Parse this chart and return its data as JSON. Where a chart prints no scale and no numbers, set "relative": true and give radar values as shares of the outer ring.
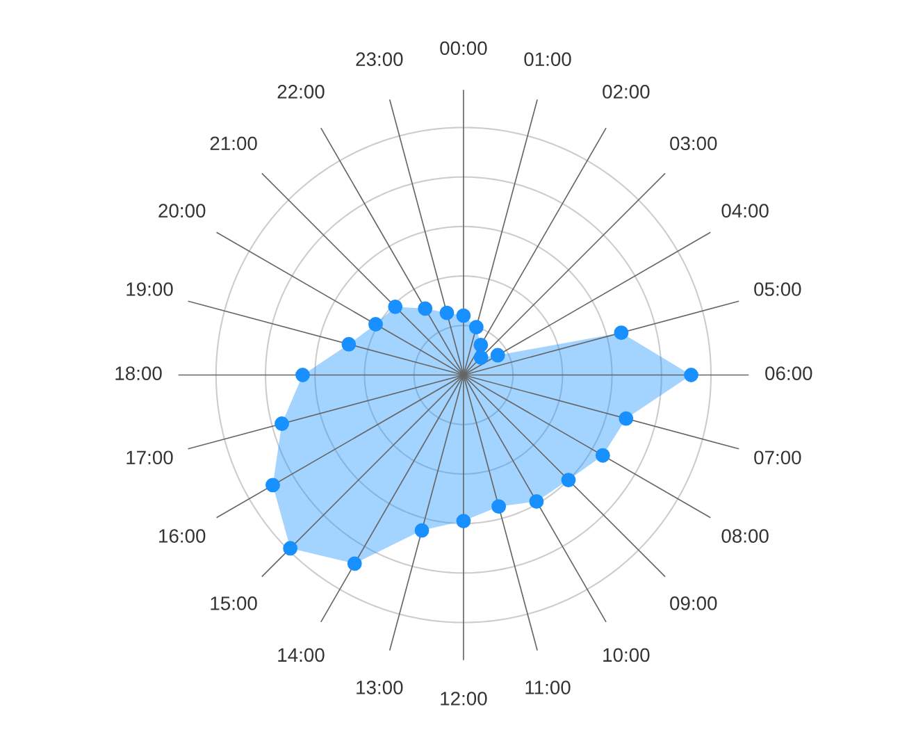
{
  "chart_data": {
    "type": "radar",
    "relative": true,
    "categories": [
      "00:00",
      "01:00",
      "02:00",
      "03:00",
      "04:00",
      "05:00",
      "06:00",
      "07:00",
      "08:00",
      "09:00",
      "10:00",
      "11:00",
      "12:00",
      "13:00",
      "14:00",
      "15:00",
      "16:00",
      "17:00",
      "18:00",
      "19:00",
      "20:00",
      "21:00",
      "22:00",
      "23:00"
    ],
    "series": [
      {
        "color": "#1890ff",
        "values": [
          0.24,
          0.2,
          0.14,
          0.1,
          0.16,
          0.66,
          0.92,
          0.68,
          0.65,
          0.6,
          0.59,
          0.55,
          0.59,
          0.65,
          0.88,
          0.99,
          0.89,
          0.76,
          0.65,
          0.48,
          0.41,
          0.39,
          0.31,
          0.26
        ]
      }
    ],
    "marker": "circle",
    "grid": true
  }
}
